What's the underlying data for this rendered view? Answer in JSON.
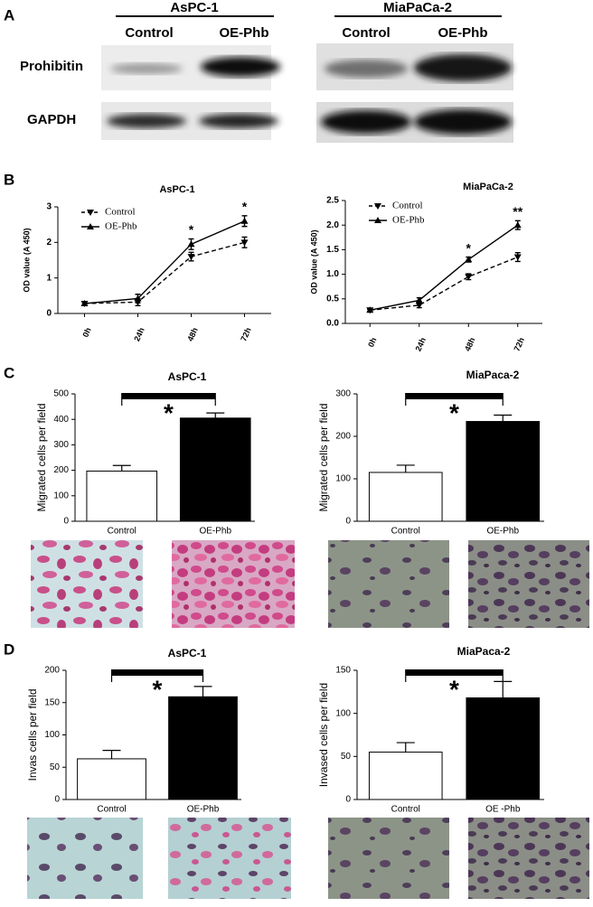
{
  "figure": {
    "panel_labels": [
      "A",
      "B",
      "C",
      "D"
    ]
  },
  "blot": {
    "groups": [
      {
        "name": "AsPC-1",
        "lanes": [
          "Control",
          "OE-Phb"
        ]
      },
      {
        "name": "MiaPaCa-2",
        "lanes": [
          "Control",
          "OE-Phb"
        ]
      }
    ],
    "proteins": [
      "Prohibitin",
      "GAPDH"
    ]
  },
  "chart_data": [
    {
      "type": "line",
      "title": "AsPC-1",
      "y_label": "OD value (A 450)",
      "categories": [
        "0h",
        "24h",
        "48h",
        "72h"
      ],
      "series": [
        {
          "name": "Control",
          "color": "#000000",
          "line_style": "dashed",
          "marker": "triangle-down",
          "values": [
            0.28,
            0.32,
            1.6,
            2.0
          ],
          "errors": [
            0.03,
            0.1,
            0.12,
            0.15
          ]
        },
        {
          "name": "OE-Phb",
          "color": "#000000",
          "line_style": "solid",
          "marker": "triangle-up",
          "values": [
            0.28,
            0.42,
            1.95,
            2.6
          ],
          "errors": [
            0.03,
            0.12,
            0.15,
            0.15
          ]
        }
      ],
      "ylim": [
        0,
        3
      ],
      "yticks": [
        0,
        1,
        2,
        3
      ],
      "annotations": [
        {
          "text": "*",
          "x": "48h"
        },
        {
          "text": "*",
          "x": "72h"
        }
      ]
    },
    {
      "type": "line",
      "title": "MiaPaCa-2",
      "y_label": "OD value (A 450)",
      "categories": [
        "0h",
        "24h",
        "48h",
        "72h"
      ],
      "series": [
        {
          "name": "Control",
          "color": "#000000",
          "line_style": "dashed",
          "marker": "triangle-down",
          "values": [
            0.27,
            0.37,
            0.95,
            1.35
          ],
          "errors": [
            0.02,
            0.05,
            0.06,
            0.09
          ]
        },
        {
          "name": "OE-Phb",
          "color": "#000000",
          "line_style": "solid",
          "marker": "triangle-up",
          "values": [
            0.27,
            0.47,
            1.3,
            2.0
          ],
          "errors": [
            0.02,
            0.05,
            0.05,
            0.09
          ]
        }
      ],
      "ylim": [
        0,
        2.5
      ],
      "yticks": [
        {
          "value": 0,
          "label": "0.0"
        },
        0.5,
        {
          "value": 1,
          "label": "1.0"
        },
        1.5,
        {
          "value": 2,
          "label": "2.0"
        },
        2.5
      ],
      "annotations": [
        {
          "text": "*",
          "x": "48h"
        },
        {
          "text": "**",
          "x": "72h"
        }
      ]
    },
    {
      "type": "bar",
      "title": "AsPC-1",
      "y_label": "Migrated cells per field",
      "categories": [
        "Control",
        "OE-Phb"
      ],
      "values": [
        197,
        405
      ],
      "errors": [
        22,
        20
      ],
      "colors": [
        "#ffffff",
        "#000000"
      ],
      "ylim": [
        0,
        500
      ],
      "yticks": [
        0,
        100,
        200,
        300,
        400,
        500
      ],
      "significance": "*"
    },
    {
      "type": "bar",
      "title": "MiaPaca-2",
      "y_label": "Migrated cells per field",
      "categories": [
        "Control",
        "OE-Phb"
      ],
      "values": [
        115,
        235
      ],
      "errors": [
        17,
        15
      ],
      "colors": [
        "#ffffff",
        "#000000"
      ],
      "ylim": [
        0,
        300
      ],
      "yticks": [
        0,
        100,
        200,
        300
      ],
      "significance": "*"
    },
    {
      "type": "bar",
      "title": "AsPC-1",
      "y_label": "Invas cells per field",
      "categories": [
        "Control",
        "OE-Phb"
      ],
      "values": [
        63,
        159
      ],
      "errors": [
        13,
        16
      ],
      "colors": [
        "#ffffff",
        "#000000"
      ],
      "ylim": [
        0,
        200
      ],
      "yticks": [
        0,
        50,
        100,
        150,
        200
      ],
      "significance": "*"
    },
    {
      "type": "bar",
      "title": "MiaPaca-2",
      "y_label": "Invased cells per field",
      "categories": [
        "Control",
        "OE -Phb"
      ],
      "values": [
        55,
        118
      ],
      "errors": [
        11,
        19
      ],
      "colors": [
        "#ffffff",
        "#000000"
      ],
      "ylim": [
        0,
        150
      ],
      "yticks": [
        0,
        50,
        100,
        150
      ],
      "significance": "*"
    }
  ]
}
